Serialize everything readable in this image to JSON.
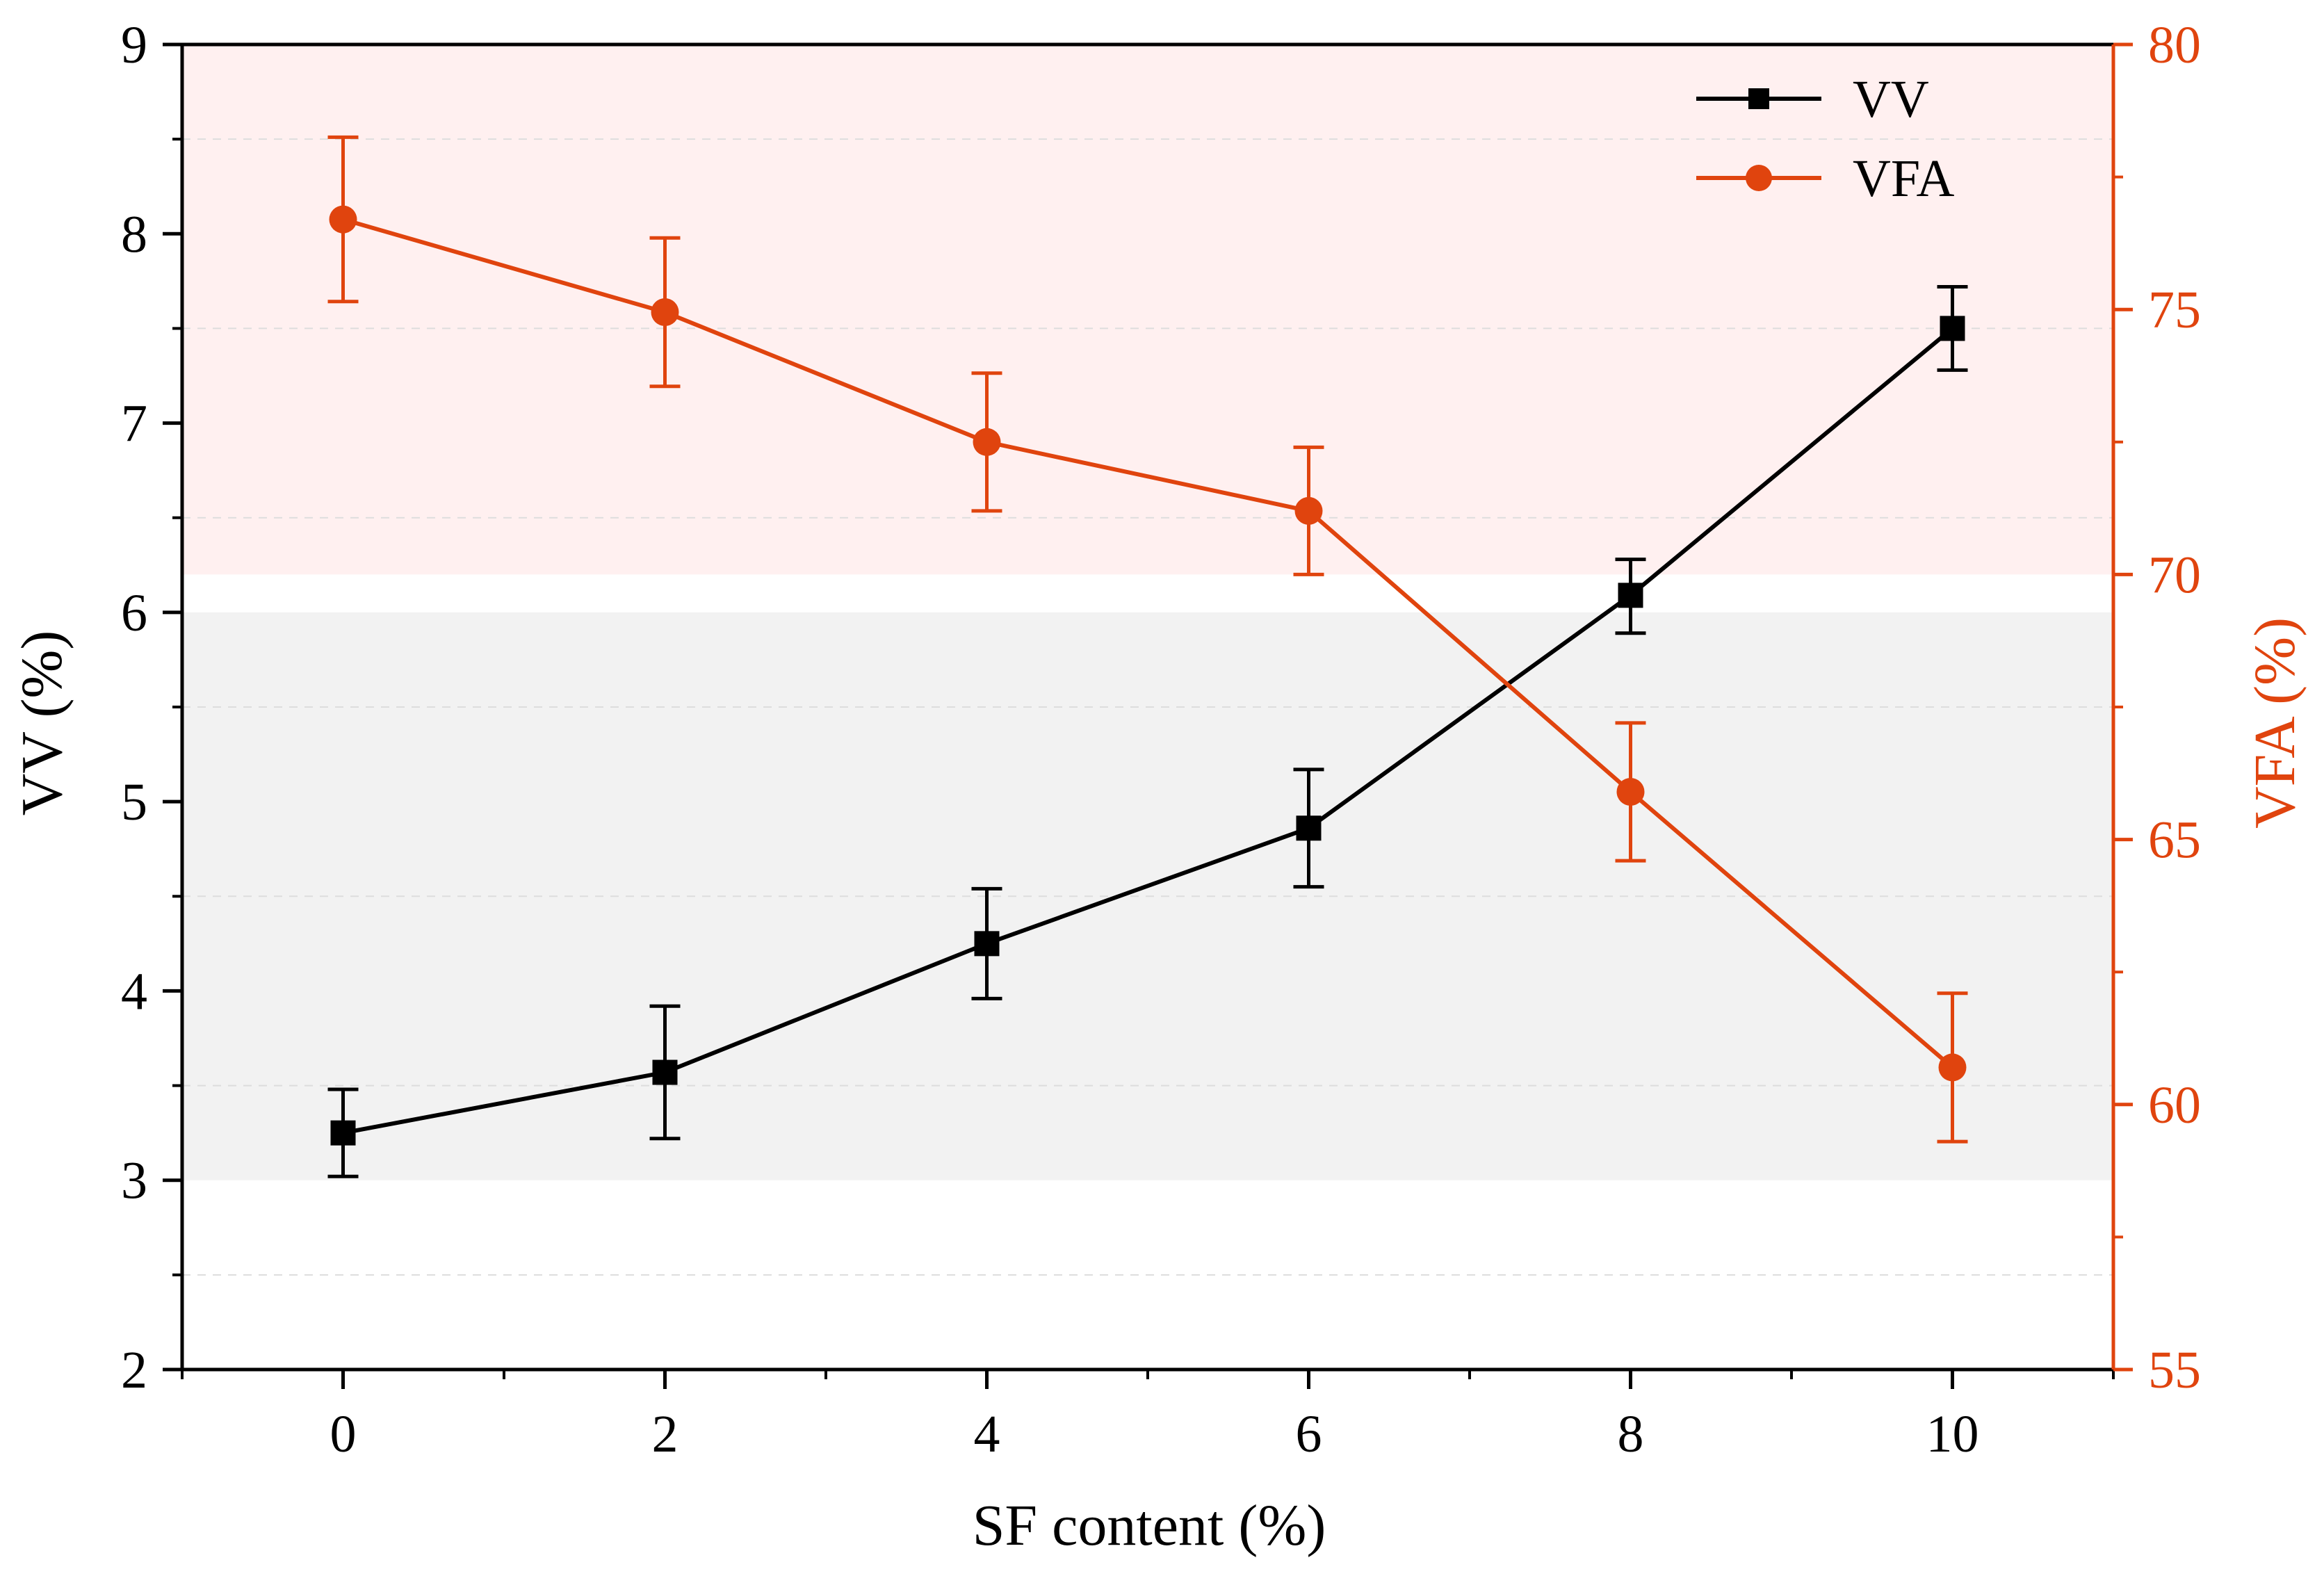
{
  "chart_data": {
    "type": "line",
    "xlabel": "SF content (%)",
    "ylabel_left": "VV (%)",
    "ylabel_right": "VFA (%)",
    "x": [
      0,
      2,
      4,
      6,
      8,
      10
    ],
    "xlim": [
      -1,
      11
    ],
    "xticks": [
      0,
      2,
      4,
      6,
      8,
      10
    ],
    "ylim_left": [
      2,
      9
    ],
    "yticks_left": [
      2,
      3,
      4,
      5,
      6,
      7,
      8,
      9
    ],
    "ylim_right": [
      55,
      80
    ],
    "yticks_right": [
      55,
      60,
      65,
      70,
      75,
      80
    ],
    "grid": "dashed horizontal",
    "legend_position": "top-right",
    "series": [
      {
        "name": "VV",
        "axis": "left",
        "marker": "square",
        "color": "#000000",
        "values": [
          3.25,
          3.57,
          4.25,
          4.86,
          6.09,
          7.5
        ],
        "err_low": [
          0.23,
          0.35,
          0.29,
          0.31,
          0.2,
          0.22
        ],
        "err_high": [
          0.23,
          0.35,
          0.29,
          0.31,
          0.19,
          0.22
        ]
      },
      {
        "name": "VFA",
        "axis": "right",
        "marker": "circle",
        "color": "#e0440e",
        "values": [
          76.7,
          74.95,
          72.5,
          71.2,
          65.9,
          60.7
        ],
        "err_low": [
          1.55,
          1.4,
          1.3,
          1.2,
          1.3,
          1.4
        ],
        "err_high": [
          1.55,
          1.4,
          1.3,
          1.2,
          1.3,
          1.4
        ]
      }
    ],
    "bands": [
      {
        "axis": "left",
        "from": 3,
        "to": 6,
        "color": "#f2f2f2"
      },
      {
        "axis": "right",
        "from": 70,
        "to": 80,
        "color": "#fff0f0"
      }
    ]
  },
  "colors": {
    "vv": "#000000",
    "vfa": "#e0440e",
    "band_vv": "#f2f2f2",
    "band_vfa": "#fff0f0",
    "grid": "#dddddd"
  }
}
